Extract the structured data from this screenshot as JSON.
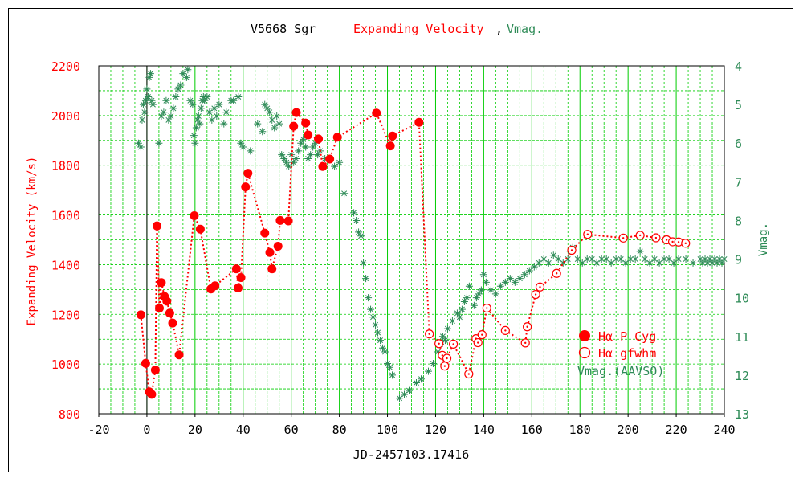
{
  "chart_data": {
    "type": "scatter",
    "title": {
      "part1": "V5668 Sgr",
      "part2": "Expanding Velocity",
      "part3": ",",
      "part4": "Vmag."
    },
    "xlabel": "JD-2457103.17416",
    "ylabel_left": "Expanding Velocity (km/s)",
    "ylabel_right": "Vmag.",
    "xlim": [
      -20,
      240
    ],
    "ylim_left": [
      800,
      2200
    ],
    "ylim_right": [
      13,
      4
    ],
    "x_ticks": [
      -20,
      0,
      20,
      40,
      60,
      80,
      100,
      120,
      140,
      160,
      180,
      200,
      220,
      240
    ],
    "y_ticks_left": [
      800,
      1000,
      1200,
      1400,
      1600,
      1800,
      2000,
      2200
    ],
    "y_ticks_right": [
      4,
      5,
      6,
      7,
      8,
      9,
      10,
      11,
      12,
      13
    ],
    "grid": true,
    "legend_position": "right-middle",
    "colors": {
      "velocity": "#ff0000",
      "vmag": "#2e8b57",
      "grid": "#00cc00",
      "axis": "#000000"
    },
    "series": [
      {
        "name": "Hα P Cyg",
        "marker": "filled-circle",
        "color": "#ff0000",
        "points": [
          [
            -2.5,
            1198
          ],
          [
            -0.5,
            1003
          ],
          [
            1.0,
            888
          ],
          [
            2.0,
            878
          ],
          [
            3.5,
            976
          ],
          [
            4.2,
            1556
          ],
          [
            5.2,
            1225
          ],
          [
            6.0,
            1328
          ],
          [
            7.3,
            1272
          ],
          [
            8.3,
            1253
          ],
          [
            9.5,
            1205
          ],
          [
            10.7,
            1165
          ],
          [
            13.4,
            1037
          ],
          [
            19.7,
            1597
          ],
          [
            22.2,
            1543
          ],
          [
            26.6,
            1302
          ],
          [
            28.3,
            1315
          ],
          [
            37.2,
            1383
          ],
          [
            37.9,
            1306
          ],
          [
            39.1,
            1348
          ],
          [
            41.0,
            1713
          ],
          [
            42.0,
            1768
          ],
          [
            49.0,
            1527
          ],
          [
            51.1,
            1449
          ],
          [
            52.0,
            1383
          ],
          [
            54.5,
            1474
          ],
          [
            55.4,
            1578
          ],
          [
            58.8,
            1576
          ],
          [
            61.0,
            1957
          ],
          [
            62.1,
            2012
          ],
          [
            66.0,
            1970
          ],
          [
            67.0,
            1922
          ],
          [
            71.3,
            1906
          ],
          [
            73.1,
            1795
          ],
          [
            76.0,
            1825
          ],
          [
            79.2,
            1913
          ],
          [
            95.4,
            2010
          ],
          [
            101.2,
            1878
          ],
          [
            102.1,
            1918
          ],
          [
            113.1,
            1973
          ]
        ]
      },
      {
        "name": "Hα gfwhm",
        "marker": "open-circle",
        "color": "#ff0000",
        "points": [
          [
            117.4,
            1121
          ],
          [
            121.4,
            1082
          ],
          [
            122.8,
            1035
          ],
          [
            123.8,
            992
          ],
          [
            124.7,
            1023
          ],
          [
            127.4,
            1080
          ],
          [
            133.8,
            960
          ],
          [
            136.8,
            1102
          ],
          [
            137.6,
            1086
          ],
          [
            139.3,
            1118
          ],
          [
            141.3,
            1225
          ],
          [
            149.0,
            1135
          ],
          [
            157.3,
            1085
          ],
          [
            158.1,
            1150
          ],
          [
            161.6,
            1280
          ],
          [
            163.4,
            1310
          ],
          [
            170.3,
            1365
          ],
          [
            176.6,
            1458
          ],
          [
            183.2,
            1522
          ],
          [
            198.0,
            1507
          ],
          [
            205.0,
            1518
          ],
          [
            211.6,
            1508
          ],
          [
            216.0,
            1500
          ],
          [
            218.5,
            1492
          ],
          [
            221.0,
            1491
          ],
          [
            223.9,
            1486
          ]
        ]
      },
      {
        "name": "Vmag.(AAVSO)",
        "marker": "asterisk",
        "color": "#2e8b57",
        "points": [
          [
            -3.5,
            6.0
          ],
          [
            -2.5,
            6.1
          ],
          [
            -2.0,
            5.4
          ],
          [
            -1.5,
            5.0
          ],
          [
            -1.0,
            5.2
          ],
          [
            -0.5,
            4.9
          ],
          [
            0.0,
            4.6
          ],
          [
            0.5,
            4.8
          ],
          [
            1.0,
            4.3
          ],
          [
            1.5,
            4.2
          ],
          [
            2.0,
            4.9
          ],
          [
            2.5,
            5.0
          ],
          [
            5.0,
            6.0
          ],
          [
            6.0,
            5.3
          ],
          [
            7.0,
            5.2
          ],
          [
            8.0,
            4.9
          ],
          [
            9.0,
            5.4
          ],
          [
            10.0,
            5.3
          ],
          [
            11.0,
            5.1
          ],
          [
            12.0,
            4.8
          ],
          [
            13.0,
            4.6
          ],
          [
            14.0,
            4.5
          ],
          [
            15.0,
            4.2
          ],
          [
            16.5,
            4.3
          ],
          [
            17.0,
            4.1
          ],
          [
            18.0,
            4.9
          ],
          [
            19.0,
            5.0
          ],
          [
            19.5,
            5.8
          ],
          [
            20.0,
            6.0
          ],
          [
            20.5,
            5.6
          ],
          [
            21.0,
            5.4
          ],
          [
            21.5,
            5.3
          ],
          [
            22.0,
            5.5
          ],
          [
            22.5,
            5.1
          ],
          [
            23.0,
            4.9
          ],
          [
            23.5,
            4.8
          ],
          [
            24.0,
            4.9
          ],
          [
            25.0,
            4.8
          ],
          [
            26.0,
            5.2
          ],
          [
            27.0,
            5.4
          ],
          [
            28.0,
            5.1
          ],
          [
            29.0,
            5.3
          ],
          [
            30.0,
            5.0
          ],
          [
            32.0,
            5.5
          ],
          [
            33.0,
            5.2
          ],
          [
            35.0,
            4.9
          ],
          [
            36.0,
            4.9
          ],
          [
            38.0,
            4.8
          ],
          [
            39.0,
            6.0
          ],
          [
            40.0,
            6.1
          ],
          [
            43.0,
            6.2
          ],
          [
            46.0,
            5.5
          ],
          [
            48.0,
            5.7
          ],
          [
            49.0,
            5.0
          ],
          [
            50.0,
            5.1
          ],
          [
            51.0,
            5.2
          ],
          [
            52.0,
            5.4
          ],
          [
            53.0,
            5.6
          ],
          [
            54.0,
            5.3
          ],
          [
            55.0,
            5.5
          ],
          [
            56.0,
            6.3
          ],
          [
            57.0,
            6.4
          ],
          [
            58.0,
            6.5
          ],
          [
            59.0,
            6.6
          ],
          [
            60.0,
            6.3
          ],
          [
            61.0,
            6.5
          ],
          [
            62.0,
            6.4
          ],
          [
            63.0,
            6.2
          ],
          [
            64.0,
            6.0
          ],
          [
            65.0,
            5.9
          ],
          [
            66.0,
            6.1
          ],
          [
            67.0,
            6.4
          ],
          [
            68.0,
            6.3
          ],
          [
            69.0,
            6.1
          ],
          [
            70.0,
            6.0
          ],
          [
            71.0,
            6.3
          ],
          [
            72.0,
            6.2
          ],
          [
            74.0,
            6.4
          ],
          [
            76.0,
            6.4
          ],
          [
            78.0,
            6.6
          ],
          [
            80.0,
            6.5
          ],
          [
            82.0,
            7.3
          ],
          [
            86.0,
            7.8
          ],
          [
            87.0,
            8.0
          ],
          [
            88.0,
            8.3
          ],
          [
            89.0,
            8.4
          ],
          [
            90.0,
            9.1
          ],
          [
            91.0,
            9.5
          ],
          [
            92.0,
            10.0
          ],
          [
            93.0,
            10.3
          ],
          [
            94.0,
            10.5
          ],
          [
            95.0,
            10.7
          ],
          [
            96.0,
            10.9
          ],
          [
            97.0,
            11.1
          ],
          [
            98.0,
            11.3
          ],
          [
            99.0,
            11.4
          ],
          [
            100.0,
            11.7
          ],
          [
            101.0,
            11.8
          ],
          [
            102.0,
            12.0
          ],
          [
            105.0,
            12.6
          ],
          [
            107.0,
            12.5
          ],
          [
            109.0,
            12.4
          ],
          [
            112.0,
            12.2
          ],
          [
            114.0,
            12.1
          ],
          [
            117.0,
            11.9
          ],
          [
            119.0,
            11.7
          ],
          [
            121.0,
            11.4
          ],
          [
            122.0,
            11.2
          ],
          [
            123.0,
            11.0
          ],
          [
            124.0,
            11.1
          ],
          [
            125.0,
            10.8
          ],
          [
            127.0,
            10.6
          ],
          [
            129.0,
            10.4
          ],
          [
            130.0,
            10.5
          ],
          [
            131.0,
            10.3
          ],
          [
            132.0,
            10.1
          ],
          [
            133.0,
            10.0
          ],
          [
            134.0,
            9.7
          ],
          [
            136.0,
            10.2
          ],
          [
            137.0,
            10.0
          ],
          [
            138.0,
            9.9
          ],
          [
            139.0,
            9.8
          ],
          [
            140.0,
            9.4
          ],
          [
            141.0,
            9.6
          ],
          [
            143.0,
            9.8
          ],
          [
            145.0,
            9.9
          ],
          [
            147.0,
            9.7
          ],
          [
            149.0,
            9.6
          ],
          [
            151.0,
            9.5
          ],
          [
            153.0,
            9.6
          ],
          [
            155.0,
            9.5
          ],
          [
            157.0,
            9.4
          ],
          [
            159.0,
            9.3
          ],
          [
            161.0,
            9.2
          ],
          [
            163.0,
            9.1
          ],
          [
            165.0,
            9.0
          ],
          [
            167.0,
            9.1
          ],
          [
            169.0,
            8.9
          ],
          [
            171.0,
            9.0
          ],
          [
            173.0,
            9.1
          ],
          [
            175.0,
            9.0
          ],
          [
            176.0,
            8.8
          ],
          [
            177.0,
            8.7
          ],
          [
            179.0,
            9.0
          ],
          [
            181.0,
            9.1
          ],
          [
            183.0,
            9.0
          ],
          [
            185.0,
            9.0
          ],
          [
            187.0,
            9.1
          ],
          [
            189.0,
            9.0
          ],
          [
            191.0,
            9.0
          ],
          [
            193.0,
            9.1
          ],
          [
            195.0,
            9.0
          ],
          [
            197.0,
            9.0
          ],
          [
            199.0,
            9.1
          ],
          [
            201.0,
            9.0
          ],
          [
            203.0,
            9.0
          ],
          [
            205.0,
            8.8
          ],
          [
            207.0,
            9.0
          ],
          [
            209.0,
            9.1
          ],
          [
            211.0,
            9.0
          ],
          [
            213.0,
            9.1
          ],
          [
            215.0,
            9.0
          ],
          [
            217.0,
            9.0
          ],
          [
            219.0,
            9.1
          ],
          [
            221.0,
            9.0
          ],
          [
            224.0,
            9.0
          ],
          [
            227.0,
            9.1
          ],
          [
            230.0,
            9.0
          ],
          [
            231.0,
            9.1
          ],
          [
            232.0,
            9.0
          ],
          [
            233.0,
            9.1
          ],
          [
            234.0,
            9.0
          ],
          [
            235.0,
            9.1
          ],
          [
            236.0,
            9.0
          ],
          [
            237.0,
            9.1
          ],
          [
            238.0,
            9.0
          ],
          [
            239.0,
            9.1
          ],
          [
            240.0,
            9.0
          ]
        ]
      }
    ],
    "legend": [
      {
        "label": "Hα P Cyg",
        "marker": "filled-circle",
        "color": "#ff0000"
      },
      {
        "label": "Hα gfwhm",
        "marker": "open-circle",
        "color": "#ff0000"
      },
      {
        "label": "Vmag.(AAVSO)",
        "marker": "none",
        "color": "#2e8b57"
      }
    ]
  }
}
